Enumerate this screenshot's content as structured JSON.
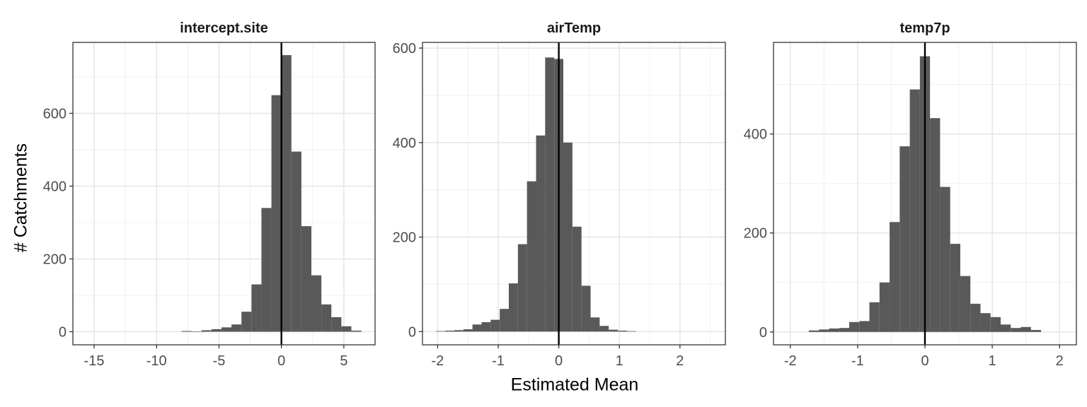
{
  "figure": {
    "ylabel": "# Catchments",
    "xlabel": "Estimated Mean"
  },
  "chart_data": [
    {
      "type": "bar",
      "title": "intercept.site",
      "xlabel": "Estimated Mean",
      "ylabel": "# Catchments",
      "xlim": [
        -16.7,
        7.5
      ],
      "ylim": [
        -36,
        795
      ],
      "x_ticks": [
        -15,
        -10,
        -5,
        0,
        5
      ],
      "y_ticks": [
        0,
        200,
        400,
        600
      ],
      "grid": true,
      "vline": 0,
      "bin_width": 0.8,
      "bins": [
        {
          "x": -7.6,
          "value": 2
        },
        {
          "x": -6.8,
          "value": 1
        },
        {
          "x": -6.0,
          "value": 4
        },
        {
          "x": -5.2,
          "value": 7
        },
        {
          "x": -4.4,
          "value": 12
        },
        {
          "x": -3.6,
          "value": 20
        },
        {
          "x": -2.8,
          "value": 55
        },
        {
          "x": -2.0,
          "value": 130
        },
        {
          "x": -1.2,
          "value": 340
        },
        {
          "x": -0.4,
          "value": 650
        },
        {
          "x": 0.4,
          "value": 760
        },
        {
          "x": 1.2,
          "value": 495
        },
        {
          "x": 2.0,
          "value": 290
        },
        {
          "x": 2.8,
          "value": 155
        },
        {
          "x": 3.6,
          "value": 75
        },
        {
          "x": 4.4,
          "value": 40
        },
        {
          "x": 5.2,
          "value": 15
        },
        {
          "x": 6.0,
          "value": 3
        }
      ]
    },
    {
      "type": "bar",
      "title": "airTemp",
      "xlabel": "Estimated Mean",
      "ylabel": "# Catchments",
      "xlim": [
        -2.25,
        2.75
      ],
      "ylim": [
        -28,
        612
      ],
      "x_ticks": [
        -2,
        -1,
        0,
        1,
        2
      ],
      "y_ticks": [
        0,
        200,
        400,
        600
      ],
      "grid": true,
      "vline": 0,
      "bin_width": 0.15,
      "bins": [
        {
          "x": -1.95,
          "value": 1
        },
        {
          "x": -1.8,
          "value": 2
        },
        {
          "x": -1.65,
          "value": 3
        },
        {
          "x": -1.5,
          "value": 5
        },
        {
          "x": -1.35,
          "value": 15
        },
        {
          "x": -1.2,
          "value": 20
        },
        {
          "x": -1.05,
          "value": 25
        },
        {
          "x": -0.9,
          "value": 48
        },
        {
          "x": -0.75,
          "value": 102
        },
        {
          "x": -0.6,
          "value": 185
        },
        {
          "x": -0.45,
          "value": 318
        },
        {
          "x": -0.3,
          "value": 415
        },
        {
          "x": -0.15,
          "value": 580
        },
        {
          "x": 0.0,
          "value": 577
        },
        {
          "x": 0.15,
          "value": 400
        },
        {
          "x": 0.3,
          "value": 222
        },
        {
          "x": 0.45,
          "value": 97
        },
        {
          "x": 0.6,
          "value": 30
        },
        {
          "x": 0.75,
          "value": 12
        },
        {
          "x": 0.9,
          "value": 4
        },
        {
          "x": 1.05,
          "value": 2
        },
        {
          "x": 1.2,
          "value": 1
        }
      ]
    },
    {
      "type": "bar",
      "title": "temp7p",
      "xlabel": "Estimated Mean",
      "ylabel": "# Catchments",
      "xlim": [
        -2.25,
        2.25
      ],
      "ylim": [
        -26,
        585
      ],
      "x_ticks": [
        -2,
        -1,
        0,
        1,
        2
      ],
      "y_ticks": [
        0,
        200,
        400
      ],
      "grid": true,
      "vline": 0,
      "bin_width": 0.15,
      "bins": [
        {
          "x": -1.65,
          "value": 3
        },
        {
          "x": -1.5,
          "value": 5
        },
        {
          "x": -1.35,
          "value": 7
        },
        {
          "x": -1.2,
          "value": 8
        },
        {
          "x": -1.05,
          "value": 20
        },
        {
          "x": -0.9,
          "value": 22
        },
        {
          "x": -0.75,
          "value": 60
        },
        {
          "x": -0.6,
          "value": 100
        },
        {
          "x": -0.45,
          "value": 222
        },
        {
          "x": -0.3,
          "value": 375
        },
        {
          "x": -0.15,
          "value": 490
        },
        {
          "x": 0.0,
          "value": 557
        },
        {
          "x": 0.15,
          "value": 432
        },
        {
          "x": 0.3,
          "value": 293
        },
        {
          "x": 0.45,
          "value": 178
        },
        {
          "x": 0.6,
          "value": 113
        },
        {
          "x": 0.75,
          "value": 57
        },
        {
          "x": 0.9,
          "value": 38
        },
        {
          "x": 1.05,
          "value": 30
        },
        {
          "x": 1.2,
          "value": 15
        },
        {
          "x": 1.35,
          "value": 8
        },
        {
          "x": 1.5,
          "value": 10
        },
        {
          "x": 1.65,
          "value": 4
        }
      ]
    }
  ]
}
